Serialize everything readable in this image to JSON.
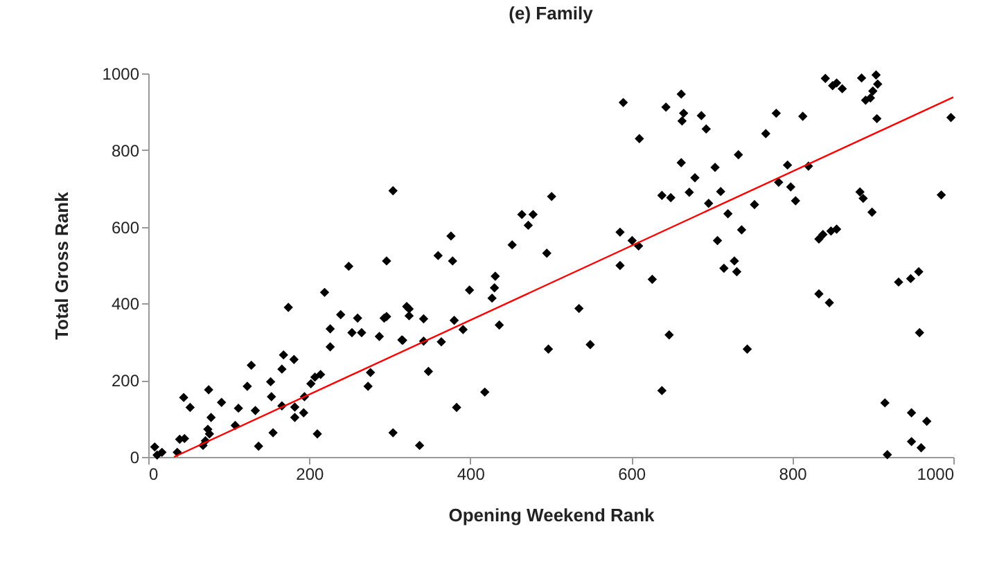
{
  "chart_data": {
    "type": "scatter",
    "title": "(e) Family",
    "xlabel": "Opening Weekend Rank",
    "ylabel": "Total Gross Rank",
    "xlim": [
      0,
      1000
    ],
    "ylim": [
      0,
      1000
    ],
    "xticks": [
      0,
      200,
      400,
      600,
      800,
      1000
    ],
    "yticks": [
      0,
      200,
      400,
      600,
      800,
      1000
    ],
    "grid": false,
    "series": [
      {
        "type": "scatter",
        "marker": "diamond",
        "color": "#000000",
        "x": [
          249,
          296,
          219,
          174,
          239,
          260,
          253,
          265,
          226,
          226,
          287,
          293,
          316,
          324,
          128,
          168,
          181,
          166,
          214,
          207,
          276,
          273,
          44,
          52,
          75,
          91,
          78,
          112,
          123,
          152,
          153,
          166,
          133,
          182,
          182,
          193,
          202,
          194,
          108,
          74,
          76,
          71,
          68,
          45,
          39,
          36,
          8,
          17,
          11,
          155,
          137,
          210,
          304,
          304,
          296,
          321,
          324,
          342,
          315,
          342,
          364,
          348,
          337,
          383,
          418,
          380,
          391,
          436,
          399,
          427,
          430,
          431,
          360,
          378,
          376,
          452,
          464,
          478,
          472,
          501,
          495,
          535,
          549,
          497,
          586,
          586,
          601,
          609,
          626,
          638,
          647,
          590,
          610,
          841,
          850,
          862,
          855,
          886,
          904,
          906,
          900,
          897,
          891,
          905,
          997,
          662,
          643,
          665,
          663,
          687,
          693,
          780,
          813,
          767,
          733,
          662,
          679,
          704,
          794,
          820,
          783,
          798,
          804,
          638,
          649,
          672,
          711,
          696,
          720,
          753,
          737,
          707,
          715,
          728,
          731,
          884,
          888,
          899,
          985,
          833,
          838,
          848,
          855,
          833,
          846,
          932,
          947,
          957,
          958,
          744,
          915,
          948,
          967,
          918,
          948,
          960
        ],
        "values": [
          497,
          511,
          429,
          390,
          371,
          362,
          324,
          324,
          334,
          287,
          314,
          362,
          304,
          386,
          239,
          266,
          254,
          229,
          215,
          208,
          220,
          184,
          155,
          129,
          175,
          142,
          103,
          127,
          184,
          196,
          157,
          133,
          121,
          130,
          103,
          115,
          191,
          157,
          82,
          72,
          60,
          42,
          30,
          48,
          46,
          12,
          26,
          12,
          5,
          63,
          28,
          60,
          63,
          694,
          366,
          392,
          368,
          360,
          305,
          302,
          300,
          223,
          30,
          129,
          169,
          356,
          332,
          344,
          435,
          414,
          441,
          471,
          525,
          511,
          576,
          553,
          632,
          632,
          604,
          679,
          531,
          387,
          293,
          281,
          586,
          499,
          564,
          550,
          463,
          173,
          318,
          924,
          830,
          987,
          968,
          960,
          975,
          988,
          996,
          972,
          954,
          936,
          930,
          882,
          885,
          946,
          912,
          896,
          876,
          890,
          855,
          896,
          888,
          843,
          788,
          767,
          728,
          755,
          761,
          758,
          716,
          704,
          668,
          682,
          676,
          690,
          692,
          661,
          634,
          658,
          592,
          564,
          492,
          511,
          483,
          691,
          674,
          638,
          683,
          568,
          580,
          589,
          594,
          425,
          402,
          456,
          465,
          483,
          324,
          281,
          141,
          115,
          93,
          6,
          40,
          24
        ]
      },
      {
        "type": "line",
        "color": "#ff0000",
        "x": [
          32,
          1000
        ],
        "values": [
          0,
          938
        ]
      }
    ]
  }
}
